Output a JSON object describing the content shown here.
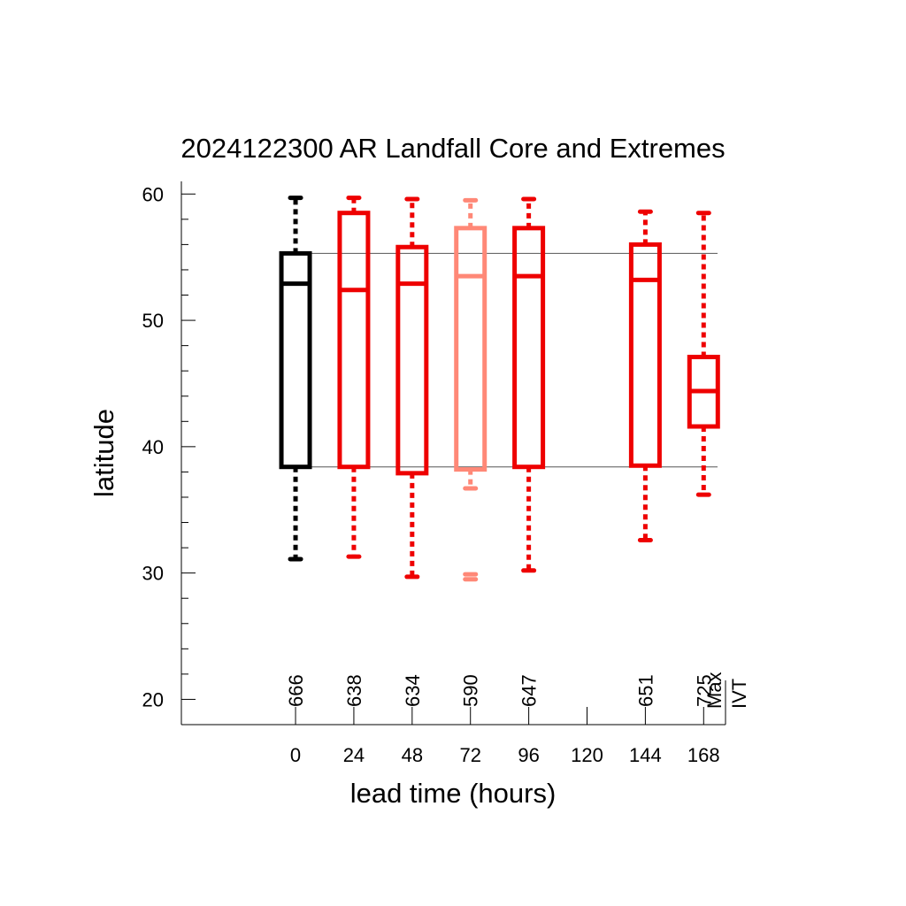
{
  "chart_data": {
    "type": "boxplot",
    "title": "2024122300 AR Landfall Core and Extremes",
    "xlabel": "lead time (hours)",
    "ylabel": "latitude",
    "ylim": [
      18,
      61
    ],
    "xlim": [
      -47,
      177
    ],
    "y_major_ticks": [
      20,
      30,
      40,
      50,
      60
    ],
    "y_tick_labels": [
      "20",
      "30",
      "40",
      "50",
      "60"
    ],
    "y_minor_step": 2,
    "x_ticks": [
      0,
      24,
      48,
      72,
      96,
      120,
      144,
      168
    ],
    "x_tick_labels": [
      "0",
      "24",
      "48",
      "72",
      "96",
      "120",
      "144",
      "168"
    ],
    "grid": false,
    "reference_lines": [
      55.3,
      38.4
    ],
    "legend_text": [
      "Max",
      "IVT"
    ],
    "colors": {
      "analysis": "#000000",
      "forecast": "#ee0000",
      "forecast_light": "#ff8877",
      "reference": "#555555"
    },
    "boxes": [
      {
        "lead": 0,
        "count": "666",
        "whisker_min": 31.1,
        "q1": 38.4,
        "median": 52.9,
        "q3": 55.3,
        "whisker_max": 59.7,
        "color": "#000000"
      },
      {
        "lead": 24,
        "count": "638",
        "whisker_min": 31.3,
        "q1": 38.4,
        "median": 52.4,
        "q3": 58.5,
        "whisker_max": 59.7,
        "color": "#ee0000"
      },
      {
        "lead": 48,
        "count": "634",
        "whisker_min": 29.7,
        "q1": 37.9,
        "median": 52.9,
        "q3": 55.8,
        "whisker_max": 59.6,
        "color": "#ee0000"
      },
      {
        "lead": 72,
        "count": "590",
        "whisker_min": 36.7,
        "q1": 38.2,
        "median": 53.5,
        "q3": 57.3,
        "whisker_max": 59.5,
        "color": "#ff8877",
        "outliers": [
          29.5,
          29.9
        ]
      },
      {
        "lead": 96,
        "count": "647",
        "whisker_min": 30.2,
        "q1": 38.4,
        "median": 53.5,
        "q3": 57.3,
        "whisker_max": 59.6,
        "color": "#ee0000"
      },
      {
        "lead": 144,
        "count": "651",
        "whisker_min": 32.6,
        "q1": 38.5,
        "median": 53.2,
        "q3": 56.0,
        "whisker_max": 58.6,
        "color": "#ee0000"
      },
      {
        "lead": 168,
        "count": "725",
        "whisker_min": 36.2,
        "q1": 41.6,
        "median": 44.4,
        "q3": 47.1,
        "whisker_max": 58.5,
        "color": "#ee0000"
      }
    ]
  }
}
